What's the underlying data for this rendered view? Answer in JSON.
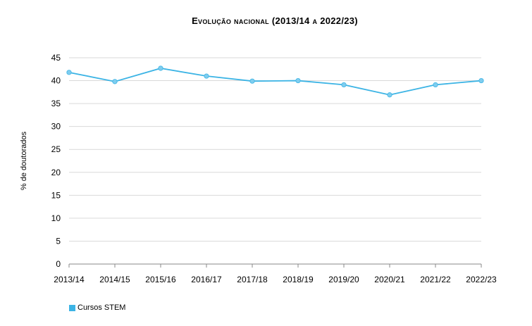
{
  "chart_data": {
    "type": "line",
    "title": "Evolução nacional (2013/14 a 2022/23)",
    "ylabel": "% de doutorados",
    "xlabel": "",
    "categories": [
      "2013/14",
      "2014/15",
      "2015/16",
      "2016/17",
      "2017/18",
      "2018/19",
      "2019/20",
      "2020/21",
      "2021/22",
      "2022/23"
    ],
    "yticks": [
      "0",
      "5",
      "10",
      "15",
      "20",
      "25",
      "30",
      "35",
      "40",
      "45"
    ],
    "ylim": [
      0,
      45
    ],
    "grid": true,
    "legend_position": "bottom-left",
    "series": [
      {
        "name": "Cursos STEM",
        "color": "#3cb4e5",
        "values": [
          41.8,
          39.8,
          42.7,
          41.0,
          39.9,
          40.0,
          39.1,
          36.9,
          39.1,
          40.0
        ]
      }
    ]
  }
}
